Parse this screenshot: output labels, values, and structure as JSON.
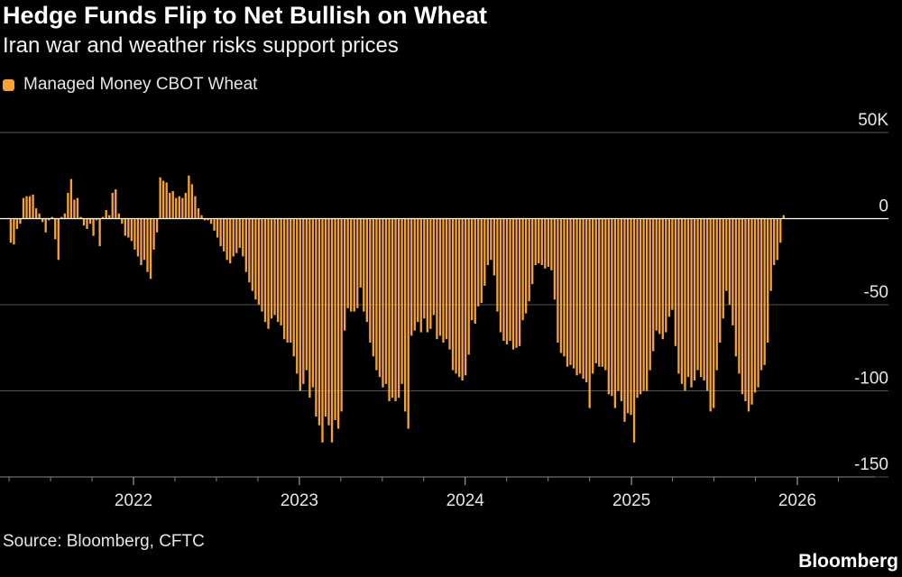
{
  "chart_data": {
    "type": "bar",
    "title": "Hedge Funds Flip to Net Bullish on Wheat",
    "subtitle": "Iran war and weather risks support prices",
    "legend": [
      {
        "name": "Managed Money CBOT Wheat",
        "color": "#F7A333"
      }
    ],
    "source": "Source: Bloomberg, CFTC",
    "brand": "Bloomberg",
    "unit": "thousand contracts",
    "ylim": [
      -150,
      50
    ],
    "y_ticks": [
      {
        "value": 50,
        "label": "50K"
      },
      {
        "value": 0,
        "label": "0"
      },
      {
        "value": -50,
        "label": "-50"
      },
      {
        "value": -100,
        "label": "-100"
      },
      {
        "value": -150,
        "label": "-150"
      }
    ],
    "x_ticks": [
      "2022",
      "2023",
      "2024",
      "2025",
      "2026"
    ],
    "x_tick_dates": [
      "2022-01-01",
      "2023-01-01",
      "2024-01-01",
      "2025-01-01",
      "2026-01-01"
    ],
    "first_week": "2021-04-06",
    "frequency": "weekly",
    "grid": true,
    "legend_position": "top-left",
    "values": [
      -14,
      -15,
      -6,
      -3,
      12,
      13,
      13,
      14,
      6,
      3,
      -2,
      -8,
      -1,
      1,
      -12,
      -24,
      1,
      3,
      15,
      23,
      11,
      12,
      1,
      -4,
      -6,
      -3,
      -10,
      -1,
      -16,
      1,
      5,
      2,
      15,
      17,
      3,
      -3,
      -10,
      -11,
      -13,
      -18,
      -22,
      -27,
      -24,
      -31,
      -35,
      -18,
      -8,
      24,
      22,
      21,
      15,
      16,
      12,
      13,
      12,
      15,
      25,
      20,
      13,
      6,
      2,
      -1,
      -1,
      -3,
      -7,
      -11,
      -16,
      -19,
      -24,
      -26,
      -22,
      -20,
      -17,
      -22,
      -31,
      -37,
      -42,
      -47,
      -50,
      -54,
      -60,
      -64,
      -58,
      -56,
      -60,
      -62,
      -70,
      -72,
      -72,
      -80,
      -90,
      -100,
      -96,
      -88,
      -104,
      -98,
      -115,
      -120,
      -130,
      -115,
      -120,
      -130,
      -117,
      -122,
      -112,
      -65,
      -52,
      -54,
      -54,
      -52,
      -40,
      -54,
      -60,
      -72,
      -80,
      -88,
      -92,
      -98,
      -96,
      -106,
      -104,
      -106,
      -104,
      -96,
      -112,
      -122,
      -68,
      -65,
      -60,
      -66,
      -58,
      -66,
      -64,
      -56,
      -70,
      -68,
      -72,
      -70,
      -76,
      -88,
      -90,
      -92,
      -94,
      -91,
      -79,
      -59,
      -61,
      -51,
      -49,
      -39,
      -27,
      -24,
      -33,
      -54,
      -66,
      -71,
      -73,
      -71,
      -76,
      -75,
      -74,
      -59,
      -55,
      -48,
      -38,
      -27,
      -26,
      -27,
      -29,
      -28,
      -30,
      -47,
      -72,
      -78,
      -80,
      -86,
      -85,
      -87,
      -91,
      -90,
      -93,
      -95,
      -110,
      -90,
      -84,
      -86,
      -86,
      -88,
      -102,
      -103,
      -110,
      -100,
      -106,
      -118,
      -113,
      -114,
      -130,
      -104,
      -102,
      -100,
      -100,
      -88,
      -77,
      -65,
      -67,
      -70,
      -66,
      -57,
      -53,
      -74,
      -90,
      -96,
      -100,
      -92,
      -98,
      -94,
      -88,
      -92,
      -94,
      -100,
      -112,
      -110,
      -88,
      -72,
      -58,
      -42,
      -50,
      -62,
      -80,
      -90,
      -102,
      -106,
      -112,
      -108,
      -101,
      -98,
      -88,
      -85,
      -72,
      -42,
      -27,
      -24,
      -14,
      2
    ]
  }
}
